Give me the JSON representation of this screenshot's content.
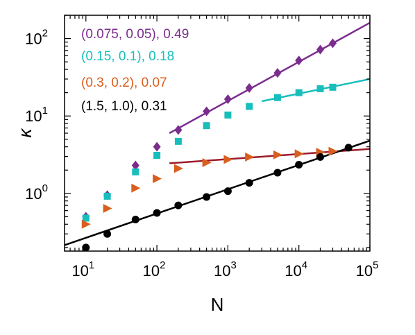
{
  "chart_data": {
    "type": "scatter",
    "xlabel": "N",
    "ylabel": "κ",
    "xscale": "log",
    "yscale": "log",
    "xlim": [
      5,
      100000
    ],
    "ylim": [
      0.18,
      200
    ],
    "grid": false,
    "legend_position": "top-left",
    "x_ticks": [
      {
        "base": "10",
        "exp": "1",
        "value": 10
      },
      {
        "base": "10",
        "exp": "2",
        "value": 100
      },
      {
        "base": "10",
        "exp": "3",
        "value": 1000
      },
      {
        "base": "10",
        "exp": "4",
        "value": 10000
      },
      {
        "base": "10",
        "exp": "5",
        "value": 100000
      }
    ],
    "y_ticks": [
      {
        "base": "10",
        "exp": "0",
        "value": 1
      },
      {
        "base": "10",
        "exp": "1",
        "value": 10
      },
      {
        "base": "10",
        "exp": "2",
        "value": 100
      }
    ],
    "series": [
      {
        "name": "(0.075, 0.05), 0.49",
        "color": "#7b2d8e",
        "marker": "diamond",
        "x": [
          10,
          20,
          50,
          100,
          200,
          500,
          1000,
          2000,
          5000,
          10000,
          20000,
          30000
        ],
        "y": [
          0.5,
          0.95,
          2.3,
          4.0,
          6.6,
          11.5,
          16.5,
          23.0,
          36.0,
          52.0,
          72.0,
          87.0
        ],
        "fit": {
          "x": [
            150,
            100000
          ],
          "y": [
            6.0,
            160.0
          ]
        }
      },
      {
        "name": "(0.15, 0.1), 0.18",
        "color": "#17bebb",
        "marker": "square",
        "x": [
          10,
          20,
          50,
          100,
          200,
          500,
          1000,
          2000,
          5000,
          10000,
          20000,
          30000
        ],
        "y": [
          0.48,
          0.92,
          1.9,
          3.1,
          4.7,
          7.5,
          10.3,
          13.3,
          17.3,
          20.0,
          22.5,
          23.5
        ],
        "fit": {
          "x": [
            3000,
            100000
          ],
          "y": [
            15.5,
            30.0
          ]
        }
      },
      {
        "name": "(0.3, 0.2), 0.07",
        "color": "#d95f1e",
        "marker": "triangle-right",
        "x": [
          10,
          20,
          50,
          100,
          200,
          500,
          1000,
          2000,
          5000,
          10000,
          20000,
          30000
        ],
        "y": [
          0.4,
          0.64,
          1.17,
          1.55,
          2.1,
          2.5,
          2.75,
          2.95,
          3.15,
          3.25,
          3.4,
          3.5
        ],
        "fit": {
          "x": [
            150,
            100000
          ],
          "y": [
            2.45,
            3.75
          ]
        }
      },
      {
        "name": "(1.5, 1.0), 0.31",
        "color": "#000000",
        "marker": "circle",
        "x": [
          10,
          20,
          50,
          100,
          200,
          500,
          1000,
          2000,
          5000,
          10000,
          20000,
          50000
        ],
        "y": [
          0.2,
          0.3,
          0.46,
          0.56,
          0.7,
          0.9,
          1.07,
          1.37,
          1.85,
          2.35,
          2.95,
          3.9
        ],
        "fit": {
          "x": [
            5,
            100000
          ],
          "y": [
            0.215,
            4.8
          ]
        }
      }
    ],
    "fit_colors": [
      "#7b2d8e",
      "#17bebb",
      "#9b1b2a",
      "#000000"
    ]
  }
}
